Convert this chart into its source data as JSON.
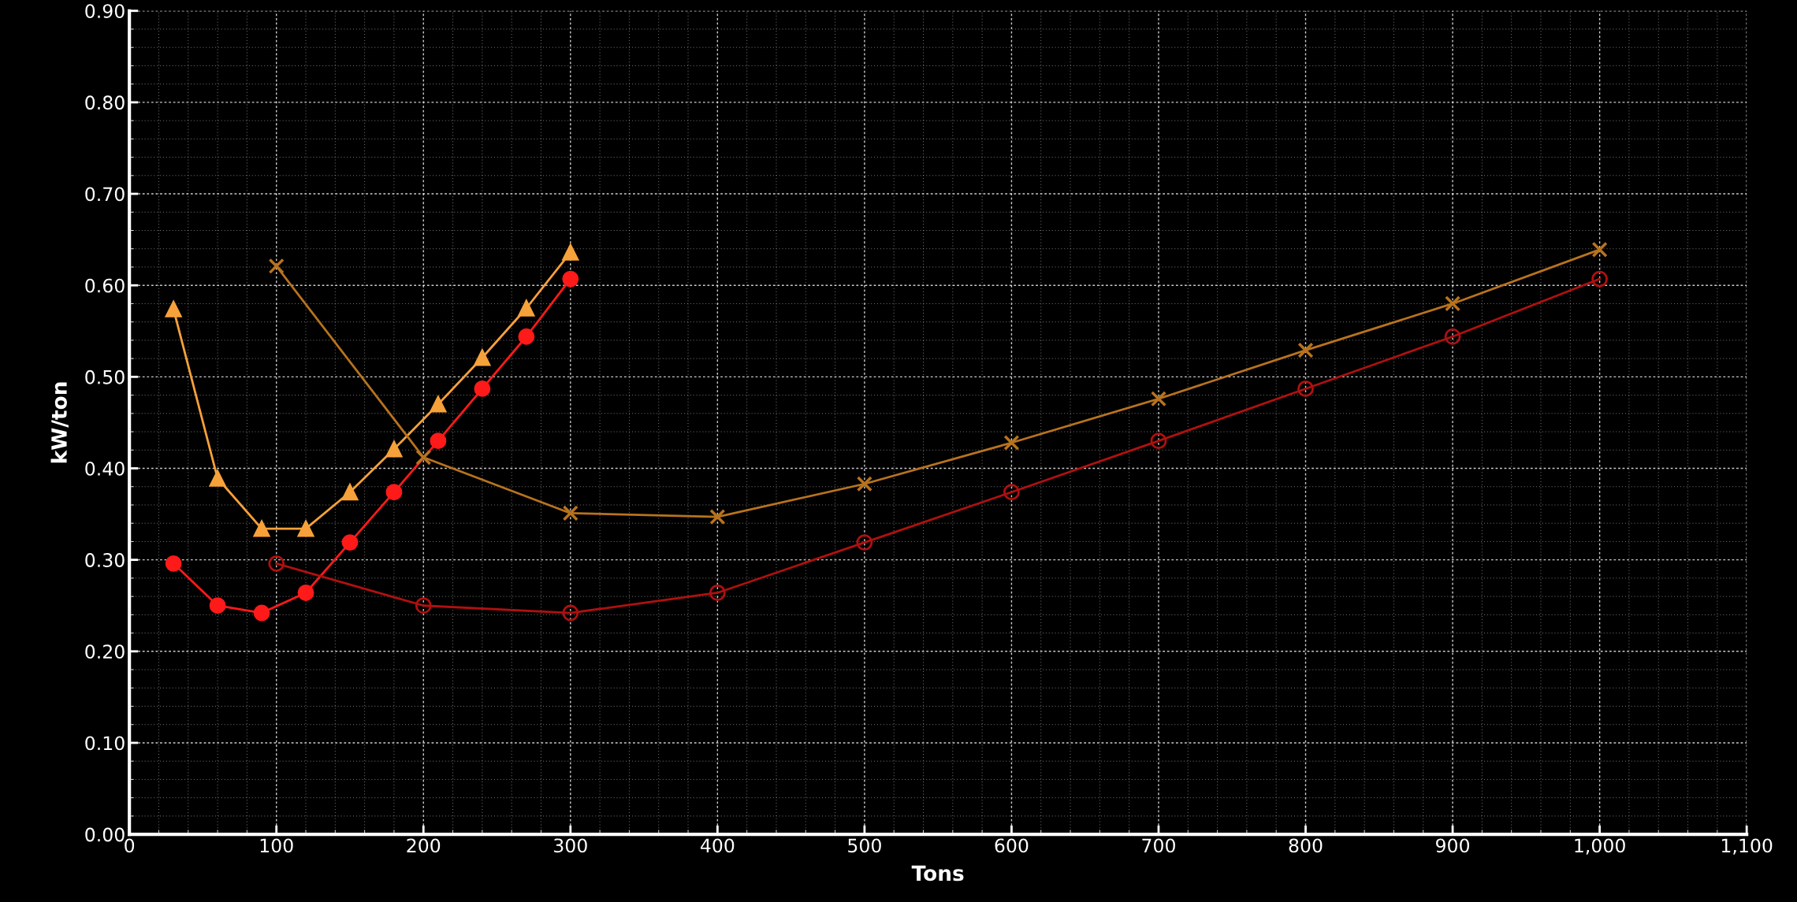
{
  "chart_data": {
    "type": "line",
    "xlabel": "Tons",
    "ylabel": "kW/ton",
    "xlim": [
      0,
      1100
    ],
    "ylim": [
      0,
      0.9
    ],
    "xticks": [
      0,
      100,
      200,
      300,
      400,
      500,
      600,
      700,
      800,
      900,
      {
        "value": 1000,
        "label": "1,000"
      },
      {
        "value": 1100,
        "label": "1,100"
      }
    ],
    "yticks": [
      {
        "value": 0,
        "label": "0.00"
      },
      {
        "value": 0.1,
        "label": "0.10"
      },
      {
        "value": 0.2,
        "label": "0.20"
      },
      {
        "value": 0.3,
        "label": "0.30"
      },
      {
        "value": 0.4,
        "label": "0.40"
      },
      {
        "value": 0.5,
        "label": "0.50"
      },
      {
        "value": 0.6,
        "label": "0.60"
      },
      {
        "value": 0.7,
        "label": "0.70"
      },
      {
        "value": 0.8,
        "label": "0.80"
      },
      {
        "value": 0.9,
        "label": "0.90"
      }
    ],
    "grid": true,
    "series": [
      {
        "color": "#f7a13a",
        "marker": "triangle",
        "x": [
          30,
          60,
          90,
          120,
          150,
          180,
          210,
          240,
          270,
          300
        ],
        "values": [
          0.574,
          0.389,
          0.334,
          0.334,
          0.374,
          0.421,
          0.47,
          0.521,
          0.575,
          0.636
        ]
      },
      {
        "color": "#ff1a1a",
        "marker": "circle",
        "x": [
          30,
          60,
          90,
          120,
          150,
          180,
          210,
          240,
          270,
          300
        ],
        "values": [
          0.296,
          0.25,
          0.242,
          0.264,
          0.319,
          0.374,
          0.43,
          0.487,
          0.544,
          0.607
        ]
      },
      {
        "color": "#b8731e",
        "marker": "cross",
        "x": [
          100,
          200,
          300,
          400,
          500,
          600,
          700,
          800,
          900,
          1000
        ],
        "values": [
          0.621,
          0.412,
          0.351,
          0.347,
          0.383,
          0.428,
          0.476,
          0.529,
          0.58,
          0.639
        ]
      },
      {
        "color": "#b01010",
        "marker": "circle",
        "x": [
          100,
          200,
          300,
          400,
          500,
          600,
          700,
          800,
          900,
          1000
        ],
        "values": [
          0.296,
          0.25,
          0.242,
          0.264,
          0.319,
          0.374,
          0.43,
          0.487,
          0.544,
          0.607
        ]
      }
    ]
  }
}
